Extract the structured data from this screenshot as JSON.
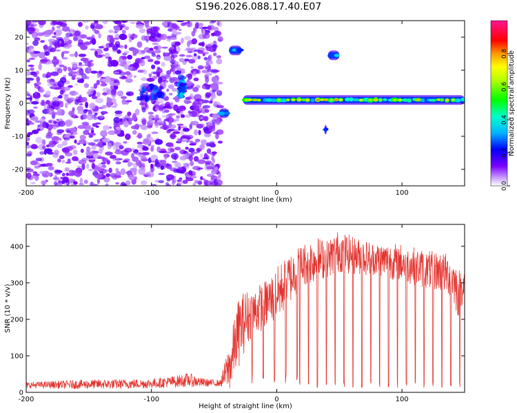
{
  "title": "S196.2026.088.17.40.E07",
  "colors": {
    "axis": "#000000",
    "snr_line": "#e3342f",
    "background": "#ffffff"
  },
  "colormap": [
    "#ffffff",
    "#a259ff",
    "#6a00f4",
    "#0000ff",
    "#00c8ff",
    "#00ff66",
    "#ffff00",
    "#ff8800",
    "#ff0000",
    "#ff1493"
  ],
  "chart_data": [
    {
      "type": "heatmap",
      "title": "",
      "xlabel": "Height of straight line (km)",
      "ylabel": "Frequency (Hz)",
      "xlim": [
        -200,
        150
      ],
      "ylim": [
        -25,
        25
      ],
      "xticks": [
        -200,
        -100,
        0,
        100
      ],
      "xtick_labels": [
        "-200",
        "-100",
        "0",
        "100"
      ],
      "yticks": [
        -20,
        -10,
        0,
        10,
        20
      ],
      "ytick_labels": [
        "-20",
        "-10",
        "0",
        "10",
        "20"
      ],
      "colorbar": {
        "label": "Normalized spectral amplitude",
        "range": [
          0,
          1
        ],
        "ticks": [
          0.0,
          0.2,
          0.4,
          0.6,
          0.8
        ],
        "tick_labels": [
          "0.0",
          "0.2",
          "0.4",
          "0.6",
          "0.8"
        ]
      },
      "regions": [
        {
          "name": "noise",
          "x": [
            -200,
            -45
          ],
          "y": [
            -25,
            25
          ],
          "amplitude": 0.12
        },
        {
          "name": "noise-cluster-a",
          "x": [
            -110,
            -90
          ],
          "y": [
            1,
            5
          ],
          "amplitude": 0.25
        },
        {
          "name": "noise-cluster-b",
          "x": [
            -78,
            -74
          ],
          "y": [
            2,
            8
          ],
          "amplitude": 0.3
        }
      ],
      "features": [
        {
          "x": [
            -46,
            -38
          ],
          "y": -3,
          "amplitude": 0.5
        },
        {
          "x": [
            -38,
            -28
          ],
          "y": 16,
          "amplitude": 0.55
        },
        {
          "x": [
            -27,
            150
          ],
          "y": 1,
          "amplitude": 0.75
        },
        {
          "x": [
            38,
            40
          ],
          "y": -8,
          "amplitude": 0.45
        },
        {
          "x": [
            41,
            50
          ],
          "y": 14.5,
          "amplitude": 0.55
        }
      ]
    },
    {
      "type": "line",
      "title": "",
      "xlabel": "Height of straight line (km)",
      "ylabel": "SNR (10 * v/v)",
      "xlim": [
        -200,
        150
      ],
      "ylim": [
        0,
        460
      ],
      "xticks": [
        -200,
        -100,
        0,
        100
      ],
      "xtick_labels": [
        "-200",
        "-100",
        "0",
        "100"
      ],
      "yticks": [
        0,
        100,
        200,
        300,
        400
      ],
      "ytick_labels": [
        "0",
        "100",
        "200",
        "300",
        "400"
      ],
      "series": [
        {
          "name": "SNR",
          "x": [
            -200,
            -150,
            -100,
            -80,
            -70,
            -60,
            -45,
            -35,
            -30,
            -25,
            -20,
            -10,
            0,
            10,
            20,
            30,
            40,
            50,
            60,
            70,
            80,
            90,
            100,
            110,
            120,
            130,
            140,
            145,
            150
          ],
          "mean": [
            20,
            22,
            24,
            30,
            34,
            27,
            25,
            90,
            140,
            175,
            195,
            220,
            245,
            290,
            330,
            345,
            350,
            370,
            360,
            355,
            352,
            345,
            340,
            330,
            320,
            315,
            300,
            250,
            290
          ],
          "peak": [
            30,
            38,
            40,
            50,
            58,
            42,
            35,
            200,
            290,
            300,
            300,
            320,
            360,
            400,
            420,
            445,
            430,
            460,
            440,
            430,
            420,
            420,
            420,
            410,
            400,
            400,
            390,
            360,
            340
          ],
          "dips_start_km": 18,
          "dip_spacing_km": 7.1,
          "dip_floor": 12
        }
      ]
    }
  ]
}
